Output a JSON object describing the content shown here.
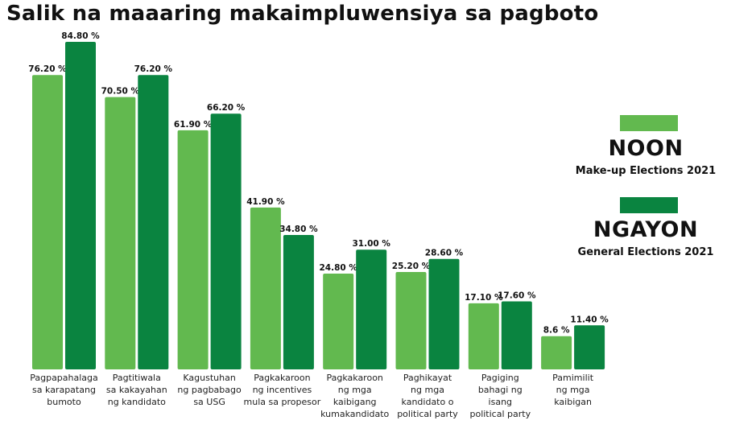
{
  "chart_data": {
    "type": "bar",
    "title": "Salik na maaaring makaimpluwensiya sa pagboto",
    "xlabel": "",
    "ylabel": "",
    "ylim": [
      0,
      100
    ],
    "categories": [
      "Pagpapahalaga sa karapatang bumoto",
      "Pagtitiwala sa kakayahan ng kandidato",
      "Kagustuhan ng pagbabago sa USG",
      "Pagkakaroon ng incentives mula sa propesor",
      "Pagkakaroon ng mga kaibigang kumakandidato",
      "Paghikayat ng mga kandidato o political party",
      "Pagiging bahagi ng isang political party",
      "Pamimilit ng mga kaibigan"
    ],
    "category_lines": [
      [
        "Pagpapahalaga",
        "sa karapatang",
        "bumoto"
      ],
      [
        "Pagtitiwala",
        "sa kakayahan",
        "ng kandidato"
      ],
      [
        "Kagustuhan",
        "ng pagbabago",
        "sa USG"
      ],
      [
        "Pagkakaroon",
        "ng incentives",
        "mula sa propesor"
      ],
      [
        "Pagkakaroon",
        "ng mga",
        "kaibigang",
        "kumakandidato"
      ],
      [
        "Paghikayat",
        "ng mga",
        "kandidato o",
        "political party"
      ],
      [
        "Pagiging",
        "bahagi ng",
        "isang",
        "political party"
      ],
      [
        "Pamimilit",
        "ng mga",
        "kaibigan"
      ]
    ],
    "series": [
      {
        "name": "NOON",
        "subtitle": "Make-up Elections 2021",
        "color": "#62b94f",
        "values": [
          76.2,
          70.5,
          61.9,
          41.9,
          24.8,
          25.2,
          17.1,
          8.6
        ],
        "labels": [
          "76.20 %",
          "70.50 %",
          "61.90 %",
          "41.90 %",
          "24.80 %",
          "25.20 %",
          "17.10 %",
          "8.6 %"
        ]
      },
      {
        "name": "NGAYON",
        "subtitle": "General Elections 2021",
        "color": "#0a8440",
        "values": [
          84.8,
          76.2,
          66.2,
          34.8,
          31.0,
          28.6,
          17.6,
          11.4
        ],
        "labels": [
          "84.80 %",
          "76.20 %",
          "66.20 %",
          "34.80 %",
          "31.00 %",
          "28.60 %",
          "17.60 %",
          "11.40 %"
        ]
      }
    ]
  }
}
